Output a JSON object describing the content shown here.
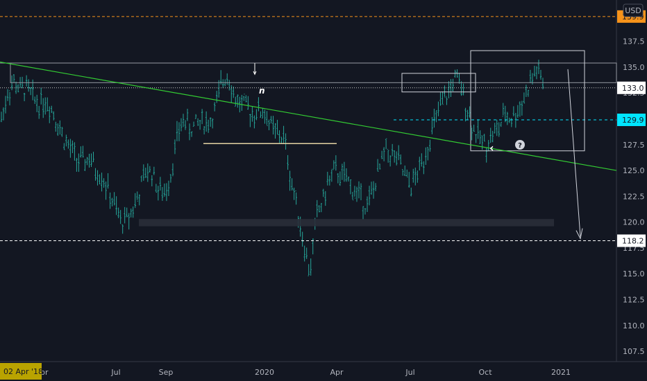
{
  "currency_button": "USD",
  "date_badge": "02 Apr '18",
  "colors": {
    "background": "#131722",
    "candle": "#26a69a",
    "trendline": "#33cc33",
    "support_line": "#e6d3a3",
    "orange_level": "#f7931a",
    "cyan_level": "#00e5ff",
    "white": "#ffffff"
  },
  "annotations": {
    "arrow_n": "n",
    "left_chevron": "‹",
    "question_mark": "?"
  },
  "chart_data": {
    "type": "line",
    "x_ticks": [
      "Apr",
      "Jul",
      "Sep",
      "2020",
      "Apr",
      "Jul",
      "Oct",
      "2021"
    ],
    "y_ticks": [
      107.5,
      110.0,
      112.5,
      115.0,
      117.5,
      120.0,
      122.5,
      125.0,
      127.5,
      130.0,
      132.5,
      135.0,
      137.5
    ],
    "ylim": [
      106.5,
      141.5
    ],
    "price_labels": [
      {
        "value": 139.9,
        "text": "139.9",
        "style": "orange"
      },
      {
        "value": 133.0,
        "text": "133.0",
        "style": "white"
      },
      {
        "value": 129.9,
        "text": "129.9",
        "style": "cyan"
      },
      {
        "value": 118.2,
        "text": "118.2",
        "style": "white"
      }
    ],
    "grid": false,
    "series": [
      {
        "values": [
          130.0,
          132.5,
          133.6,
          132.8,
          133.0,
          132.0,
          131.5,
          131.8,
          131.0,
          129.5,
          128.0,
          127.0,
          126.0,
          125.8,
          126.2,
          125.0,
          124.5,
          123.0,
          121.5,
          120.0,
          120.3,
          121.5,
          123.0,
          125.0,
          124.8,
          123.0,
          122.8,
          125.0,
          128.5,
          130.0,
          129.0,
          129.5,
          129.8,
          129.6,
          131.0,
          133.5,
          134.5,
          132.0,
          131.5,
          131.0,
          130.5,
          130.8,
          130.5,
          129.0,
          128.5,
          128.0,
          124.0,
          121.5,
          118.0,
          115.0,
          120.5,
          122.0,
          124.0,
          125.0,
          124.5,
          124.0,
          123.0,
          122.5,
          121.5,
          123.0,
          125.0,
          127.0,
          126.5,
          126.0,
          124.5,
          123.5,
          124.5,
          126.0,
          128.0,
          130.0,
          131.5,
          132.5,
          134.0,
          133.0,
          131.0,
          129.0,
          128.0,
          127.5,
          128.5,
          129.0,
          130.5,
          130.0,
          130.8,
          132.0,
          133.5,
          134.8,
          133.5
        ]
      }
    ]
  }
}
